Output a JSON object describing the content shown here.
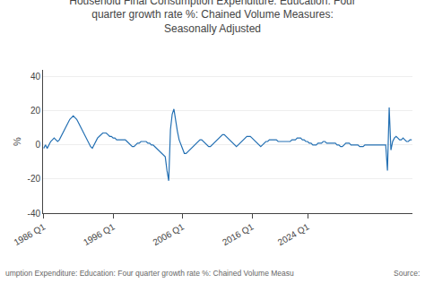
{
  "chart_data": {
    "type": "line",
    "title": "Household Final Consumption Expenditure: Education: Four\nquarter growth rate %: Chained Volume Measures:\nSeasonally Adjusted",
    "y_label": "%",
    "color": "#2470b3",
    "grid": true,
    "annotations": [
      "umption Expenditure: Education: Four quarter growth rate %: Chained Volume Measu",
      "Source:"
    ],
    "xlim": [
      1985.9,
      2039.1
    ],
    "xticks": [
      {
        "value": 1986,
        "label": "1986 Q1"
      },
      {
        "value": 1996,
        "label": "1996 Q1"
      },
      {
        "value": 2006,
        "label": "2006 Q1"
      },
      {
        "value": 2016,
        "label": "2016 Q1"
      },
      {
        "value": 2024,
        "label": "2024 Q1"
      }
    ],
    "ylim": [
      -40,
      44
    ],
    "yticks": [
      -40,
      -20,
      0,
      20,
      40
    ],
    "x": [
      1986,
      1986.25,
      1986.5,
      1986.75,
      1987,
      1987.25,
      1987.5,
      1987.75,
      1988,
      1988.25,
      1988.5,
      1988.75,
      1989,
      1989.25,
      1989.5,
      1989.75,
      1990,
      1990.25,
      1990.5,
      1990.75,
      1991,
      1991.25,
      1991.5,
      1991.75,
      1992,
      1992.25,
      1992.5,
      1992.75,
      1993,
      1993.25,
      1993.5,
      1993.75,
      1994,
      1994.25,
      1994.5,
      1994.75,
      1995,
      1995.25,
      1995.5,
      1995.75,
      1996,
      1996.25,
      1996.5,
      1996.75,
      1997,
      1997.25,
      1997.5,
      1997.75,
      1998,
      1998.25,
      1998.5,
      1998.75,
      1999,
      1999.25,
      1999.5,
      1999.75,
      2000,
      2000.25,
      2000.5,
      2000.75,
      2001,
      2001.25,
      2001.5,
      2001.75,
      2002,
      2002.25,
      2002.5,
      2002.75,
      2003,
      2003.25,
      2003.5,
      2003.75,
      2004,
      2004.25,
      2004.5,
      2004.75,
      2005,
      2005.25,
      2005.5,
      2005.75,
      2006,
      2006.25,
      2006.5,
      2006.75,
      2007,
      2007.25,
      2007.5,
      2007.75,
      2008,
      2008.25,
      2008.5,
      2008.75,
      2009,
      2009.25,
      2009.5,
      2009.75,
      2010,
      2010.25,
      2010.5,
      2010.75,
      2011,
      2011.25,
      2011.5,
      2011.75,
      2012,
      2012.25,
      2012.5,
      2012.75,
      2013,
      2013.25,
      2013.5,
      2013.75,
      2014,
      2014.25,
      2014.5,
      2014.75,
      2015,
      2015.25,
      2015.5,
      2015.75,
      2016,
      2016.25,
      2016.5,
      2016.75,
      2017,
      2017.25,
      2017.5,
      2017.75,
      2018,
      2018.25,
      2018.5,
      2018.75,
      2019,
      2019.25,
      2019.5,
      2019.75,
      2020,
      2020.25,
      2020.5,
      2020.75,
      2021,
      2021.25,
      2021.5,
      2021.75,
      2022,
      2022.25,
      2022.5,
      2022.75,
      2023,
      2023.25,
      2023.5,
      2023.75,
      2024,
      2024.25,
      2024.5,
      2024.75,
      2025,
      2025.25,
      2025.5,
      2025.75,
      2026,
      2026.25,
      2026.5,
      2026.75,
      2027,
      2027.25,
      2027.5,
      2027.75,
      2028,
      2028.25,
      2028.5,
      2028.75,
      2029,
      2029.25,
      2029.5,
      2029.75,
      2030,
      2030.25,
      2030.5,
      2030.75,
      2031,
      2031.25,
      2031.5,
      2031.75,
      2032,
      2032.25,
      2032.5,
      2032.75,
      2033,
      2033.25,
      2033.5,
      2033.75,
      2034,
      2034.25,
      2034.5,
      2034.75,
      2035,
      2035.25,
      2035.5,
      2035.75,
      2036,
      2036.25,
      2036.5,
      2036.75,
      2037,
      2037.25,
      2037.5,
      2037.75,
      2038,
      2038.25,
      2038.5,
      2038.75,
      2039
    ],
    "values": [
      -2,
      0,
      -2,
      0,
      2,
      3,
      4,
      3,
      2,
      3,
      5,
      7,
      9,
      11,
      13,
      15,
      16,
      17,
      16,
      15,
      13,
      11,
      9,
      7,
      5,
      3,
      1,
      -1,
      -2,
      0,
      2,
      4,
      5,
      6,
      7,
      7,
      7,
      6,
      5,
      5,
      4,
      4,
      3,
      3,
      3,
      3,
      3,
      3,
      2,
      1,
      0,
      -1,
      -1,
      0,
      1,
      1,
      2,
      2,
      2,
      2,
      1,
      1,
      0,
      0,
      -1,
      -2,
      -3,
      -4,
      -5,
      -6,
      -7,
      -15,
      -21,
      9,
      18,
      21,
      14,
      8,
      3,
      0,
      -3,
      -5,
      -5,
      -4,
      -3,
      -2,
      -1,
      0,
      1,
      2,
      3,
      3,
      2,
      1,
      0,
      -1,
      -1,
      0,
      1,
      2,
      3,
      4,
      5,
      6,
      6,
      5,
      4,
      3,
      2,
      1,
      0,
      -1,
      0,
      1,
      2,
      3,
      4,
      5,
      5,
      5,
      4,
      3,
      2,
      1,
      0,
      -1,
      0,
      1,
      2,
      2,
      3,
      3,
      3,
      3,
      3,
      2,
      2,
      2,
      2,
      2,
      2,
      2,
      2,
      3,
      3,
      3,
      4,
      4,
      4,
      3,
      3,
      2,
      2,
      1,
      1,
      0,
      0,
      0,
      1,
      1,
      1,
      2,
      2,
      1,
      1,
      1,
      1,
      1,
      1,
      0,
      0,
      -1,
      -1,
      0,
      1,
      1,
      1,
      0,
      0,
      0,
      0,
      0,
      -1,
      -1,
      -1,
      0,
      0,
      0,
      0,
      0,
      0,
      0,
      0,
      0,
      0,
      0,
      0,
      0,
      -15,
      22,
      -3,
      2,
      4,
      5,
      4,
      3,
      3,
      4,
      3,
      2,
      2,
      3,
      3
    ]
  }
}
